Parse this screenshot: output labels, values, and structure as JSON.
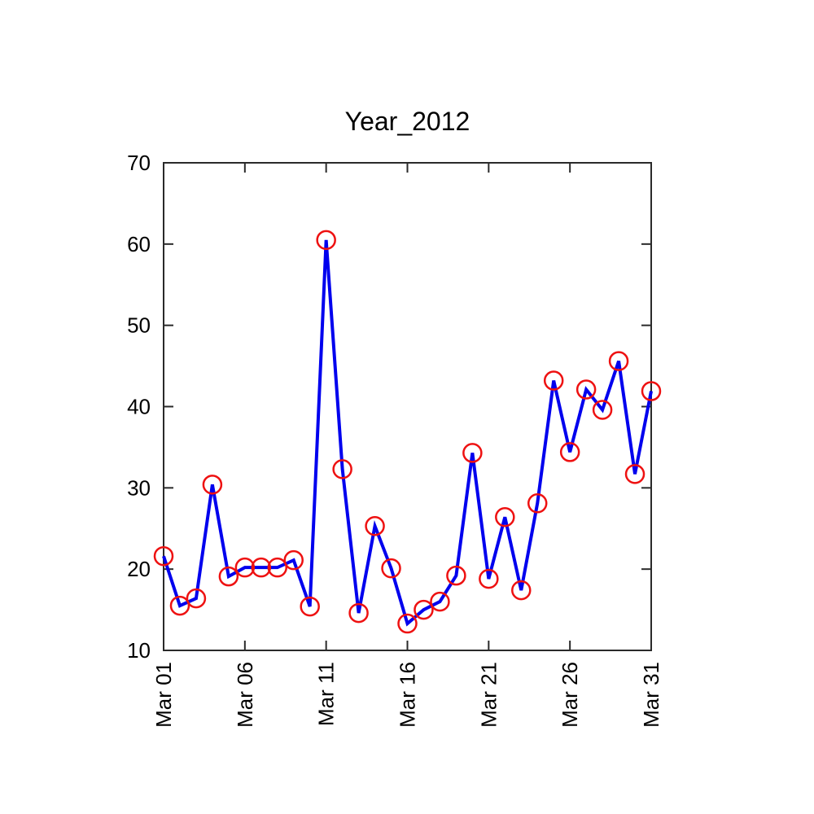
{
  "title": "Year_2012",
  "colors": {
    "background": "#ffffff",
    "line": "#0000ee",
    "marker": "#ee1111",
    "axis": "#2a2a2a",
    "text": "#000000"
  },
  "chart_data": {
    "type": "line",
    "title": "Year_2012",
    "xlabel": "",
    "ylabel": "",
    "x": [
      "Mar 01",
      "Mar 02",
      "Mar 03",
      "Mar 04",
      "Mar 05",
      "Mar 06",
      "Mar 07",
      "Mar 08",
      "Mar 09",
      "Mar 10",
      "Mar 11",
      "Mar 12",
      "Mar 13",
      "Mar 14",
      "Mar 15",
      "Mar 16",
      "Mar 17",
      "Mar 18",
      "Mar 19",
      "Mar 20",
      "Mar 21",
      "Mar 22",
      "Mar 23",
      "Mar 24",
      "Mar 25",
      "Mar 26",
      "Mar 27",
      "Mar 28",
      "Mar 29",
      "Mar 30",
      "Mar 31"
    ],
    "values": [
      21.6,
      15.5,
      16.4,
      30.4,
      19.1,
      20.2,
      20.2,
      20.2,
      21.1,
      15.4,
      60.5,
      32.3,
      14.6,
      25.3,
      20.1,
      13.3,
      15.0,
      16.0,
      19.2,
      34.3,
      18.8,
      26.4,
      17.4,
      28.1,
      43.2,
      34.4,
      42.1,
      39.6,
      45.6,
      31.7,
      41.9
    ],
    "x_tick_labels": [
      "Mar 01",
      "Mar 06",
      "Mar 11",
      "Mar 16",
      "Mar 21",
      "Mar 26",
      "Mar 31"
    ],
    "x_tick_indices": [
      0,
      5,
      10,
      15,
      20,
      25,
      30
    ],
    "x_tick_rotation_deg": -90,
    "y_ticks": [
      10,
      20,
      30,
      40,
      50,
      60,
      70
    ],
    "ylim": [
      10,
      70
    ],
    "marker": "open-circle",
    "line_style": "solid",
    "grid": false,
    "legend_position": "none"
  }
}
